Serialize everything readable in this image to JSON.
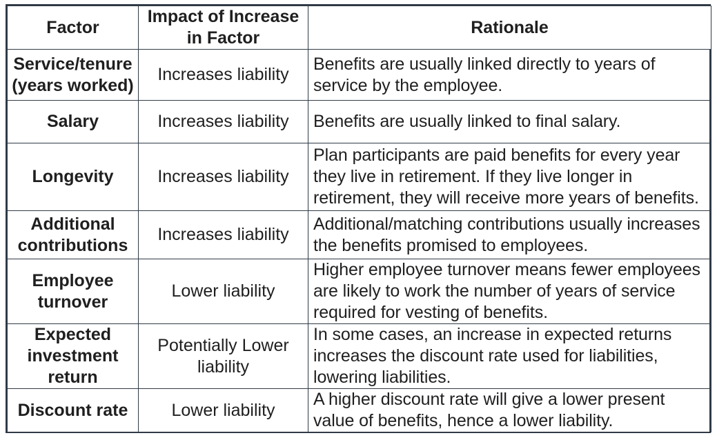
{
  "table": {
    "headers": {
      "factor": "Factor",
      "impact": "Impact of Increase in Factor",
      "rationale": "Rationale"
    },
    "rows": [
      {
        "factor": "Service/tenure (years worked)",
        "impact": "Increases liability",
        "rationale": "Benefits are usually linked directly to years of service by the employee."
      },
      {
        "factor": "Salary",
        "impact": "Increases liability",
        "rationale": "Benefits are usually linked to final salary."
      },
      {
        "factor": "Longevity",
        "impact": "Increases liability",
        "rationale": "Plan participants are paid benefits for every year they live in retirement. If they live longer in retirement, they will receive more years of benefits."
      },
      {
        "factor": "Additional contributions",
        "impact": "Increases liability",
        "rationale": "Additional/matching contributions usually increases the benefits promised to employees."
      },
      {
        "factor": "Employee turnover",
        "impact": "Lower liability",
        "rationale": "Higher employee turnover means fewer employees are likely to work the number of years of service required for vesting of benefits."
      },
      {
        "factor": "Expected investment return",
        "impact": "Potentially Lower liability",
        "rationale": "In some cases, an increase in expected returns increases the discount rate used for liabilities, lowering liabilities."
      },
      {
        "factor": "Discount rate",
        "impact": "Lower liability",
        "rationale": "A higher discount rate will give a lower present value of benefits, hence a lower liability."
      }
    ]
  }
}
